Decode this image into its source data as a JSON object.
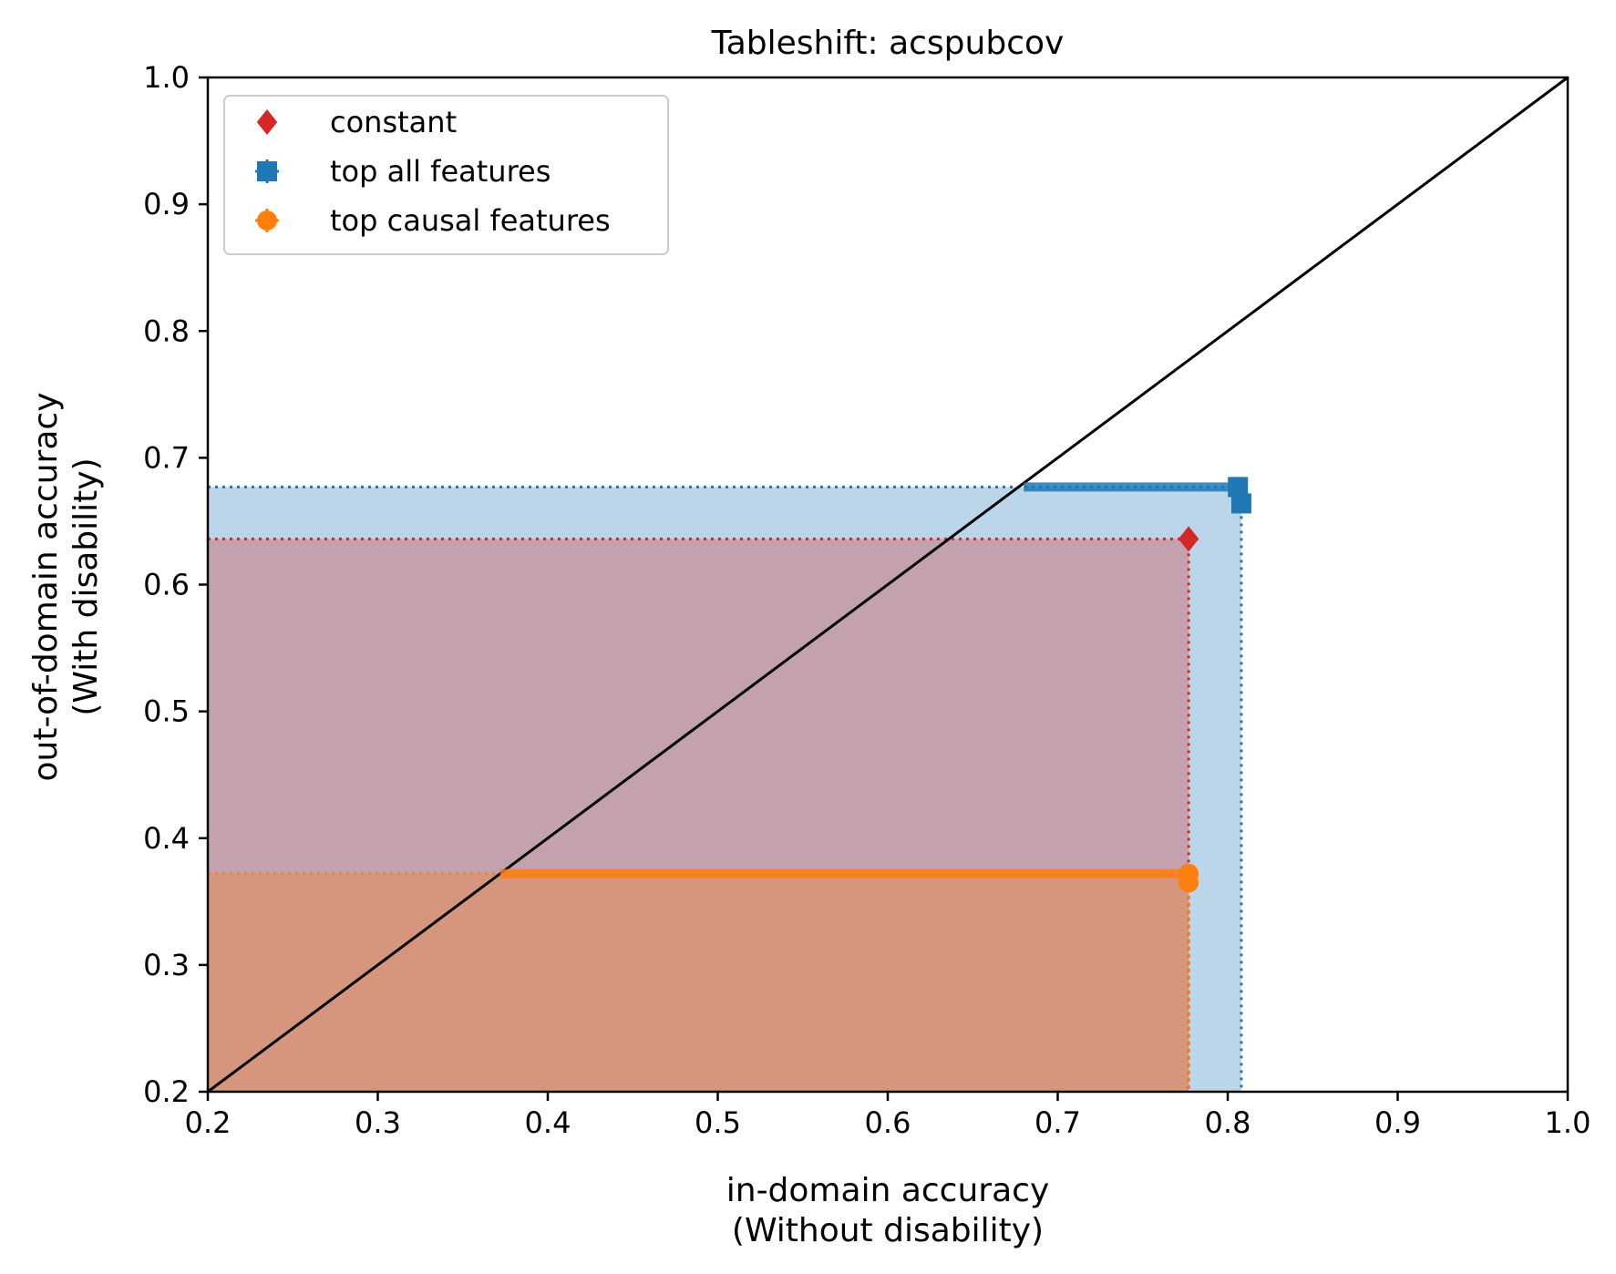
{
  "chart_data": {
    "type": "scatter",
    "title": "Tableshift: acspubcov",
    "xlabel": [
      "in-domain accuracy",
      "(Without disability)"
    ],
    "ylabel": [
      "out-of-domain accuracy",
      "(With disability)"
    ],
    "xlim": [
      0.2,
      1.0
    ],
    "ylim": [
      0.2,
      1.0
    ],
    "xticks": [
      "0.2",
      "0.3",
      "0.4",
      "0.5",
      "0.6",
      "0.7",
      "0.8",
      "0.9",
      "1.0"
    ],
    "yticks": [
      "0.2",
      "0.3",
      "0.4",
      "0.5",
      "0.6",
      "0.7",
      "0.8",
      "0.9",
      "1.0"
    ],
    "grid": false,
    "legend_position": "top-left",
    "diagonal": {
      "from": [
        0.2,
        0.2
      ],
      "to": [
        1.0,
        1.0
      ],
      "color": "#000000"
    },
    "series": [
      {
        "name": "constant",
        "marker": "diamond",
        "color": "#d62728",
        "points": [
          {
            "x": 0.777,
            "y": 0.636,
            "xerr": 0,
            "yerr": 0
          }
        ],
        "shade_to": {
          "x": 0.777,
          "y": 0.636
        }
      },
      {
        "name": "top all features",
        "marker": "square",
        "color": "#1f77b4",
        "points": [
          {
            "x": 0.806,
            "y": 0.677,
            "xerr": 0.0,
            "yerr": 0.002,
            "x_from": 0.68
          },
          {
            "x": 0.808,
            "y": 0.664,
            "xerr": 0,
            "yerr": 0
          }
        ],
        "shade_to": {
          "x": 0.808,
          "y": 0.677
        }
      },
      {
        "name": "top causal features",
        "marker": "circle",
        "color": "#ff7f0e",
        "points": [
          {
            "x": 0.777,
            "y": 0.372,
            "xerr": 0,
            "yerr": 0.002,
            "x_from": 0.372
          },
          {
            "x": 0.777,
            "y": 0.365,
            "xerr": 0,
            "yerr": 0
          }
        ],
        "shade_to": {
          "x": 0.777,
          "y": 0.372
        }
      }
    ]
  }
}
